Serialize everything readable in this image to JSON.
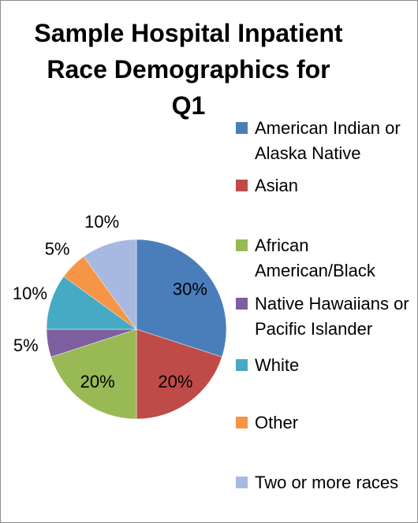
{
  "chart_data": {
    "type": "pie",
    "title": "Sample Hospital Inpatient Race Demographics for Q1",
    "title_lines": [
      "Sample Hospital Inpatient",
      "Race Demographics for",
      "Q1"
    ],
    "categories": [
      "American Indian or Alaska Native",
      "Asian",
      "African American/Black",
      "Native Hawaiians or Pacific Islander",
      "White",
      "Other",
      "Two or more races"
    ],
    "values": [
      30,
      20,
      20,
      5,
      10,
      5,
      10
    ],
    "data_labels": [
      "30%",
      "20%",
      "20%",
      "5%",
      "10%",
      "5%",
      "10%"
    ],
    "colors": [
      "#4a7ebb",
      "#be4b48",
      "#98b954",
      "#7d5fa0",
      "#46aac5",
      "#f69546",
      "#a7b9e1"
    ],
    "legend": {
      "position": "right",
      "entries": [
        {
          "label": "American Indian or Alaska Native",
          "color": "#4a7ebb"
        },
        {
          "label": "Asian",
          "color": "#be4b48"
        },
        {
          "label": "African American/Black",
          "color": "#98b954"
        },
        {
          "label": "Native Hawaiians or Pacific Islander",
          "color": "#7d5fa0"
        },
        {
          "label": "White",
          "color": "#46aac5"
        },
        {
          "label": "Other",
          "color": "#f69546"
        },
        {
          "label": "Two or more races",
          "color": "#a7b9e1"
        }
      ]
    }
  }
}
